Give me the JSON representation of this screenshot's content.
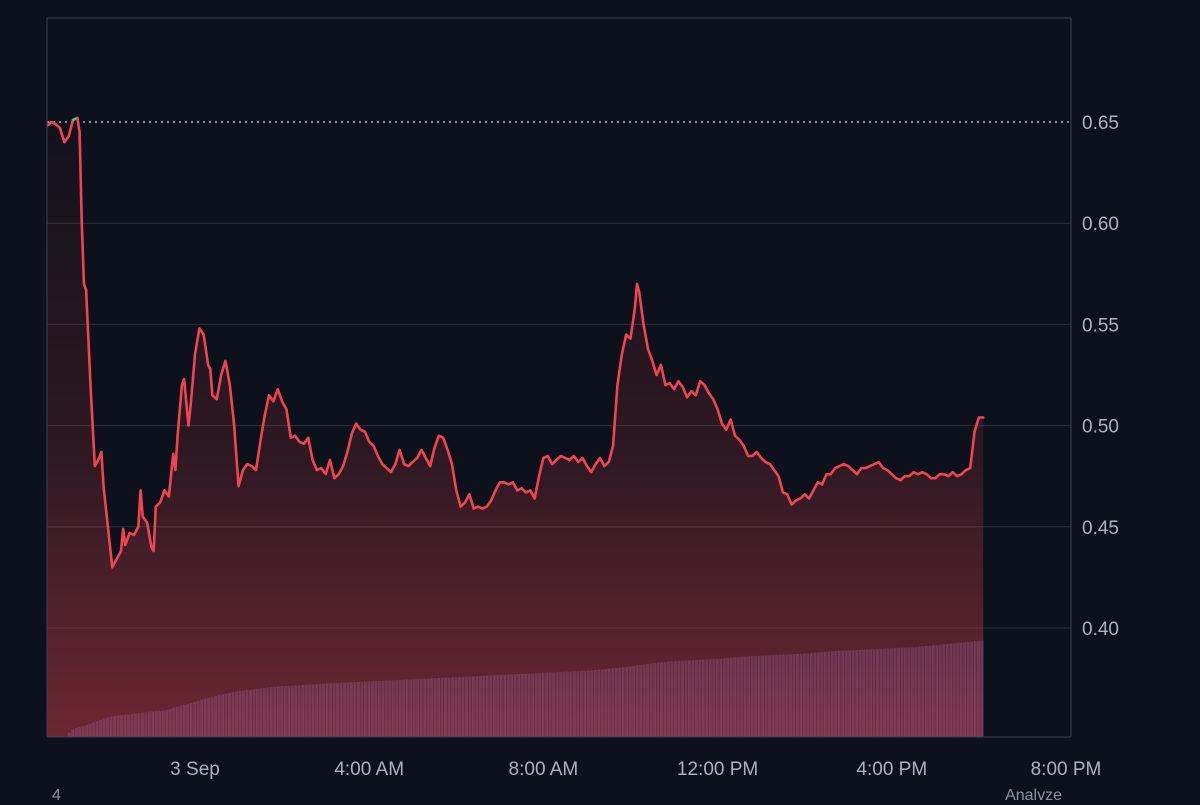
{
  "chart_data": {
    "type": "line",
    "title": "",
    "xlabel": "",
    "ylabel": "",
    "ylim": [
      0.4,
      0.7
    ],
    "y_ticks": [
      0.4,
      0.45,
      0.5,
      0.55,
      0.6,
      0.65
    ],
    "y_tick_labels": [
      "0.40",
      "0.45",
      "0.50",
      "0.55",
      "0.60",
      "0.65"
    ],
    "x_tick_labels": [
      "3 Sep",
      "4:00 AM",
      "8:00 AM",
      "12:00 PM",
      "4:00 PM",
      "8:00 PM"
    ],
    "x_tick_times_hours": [
      0,
      4,
      8,
      12,
      16,
      20
    ],
    "x_range_hours": [
      -3.5,
      20
    ],
    "grid": true,
    "legend": "none",
    "reference_line": {
      "value": 0.65,
      "style": "dotted"
    },
    "colors": {
      "background": "#0d111b",
      "plot_border": "#3a4152",
      "grid": "#2b3140",
      "line_down": "#ef4550",
      "line_up": "#4cc46a",
      "fill_top": "#ef4550",
      "volume": "#2f3358",
      "tick_label": "#aab2c3",
      "reference": "#c8ccd6"
    },
    "series": [
      {
        "points": [
          [
            -3.5,
            0.651
          ],
          [
            -3.4,
            0.648
          ],
          [
            -3.3,
            0.65
          ],
          [
            -3.2,
            0.649
          ],
          [
            -3.1,
            0.647
          ],
          [
            -3.0,
            0.64
          ],
          [
            -2.9,
            0.643
          ],
          [
            -2.8,
            0.651
          ],
          [
            -2.7,
            0.652
          ],
          [
            -2.65,
            0.645
          ],
          [
            -2.6,
            0.6
          ],
          [
            -2.55,
            0.57
          ],
          [
            -2.5,
            0.567
          ],
          [
            -2.4,
            0.52
          ],
          [
            -2.3,
            0.48
          ],
          [
            -2.2,
            0.484
          ],
          [
            -2.15,
            0.487
          ],
          [
            -2.1,
            0.47
          ],
          [
            -2.0,
            0.45
          ],
          [
            -1.9,
            0.43
          ],
          [
            -1.8,
            0.434
          ],
          [
            -1.7,
            0.438
          ],
          [
            -1.65,
            0.449
          ],
          [
            -1.6,
            0.441
          ],
          [
            -1.5,
            0.447
          ],
          [
            -1.4,
            0.446
          ],
          [
            -1.3,
            0.45
          ],
          [
            -1.25,
            0.468
          ],
          [
            -1.2,
            0.455
          ],
          [
            -1.1,
            0.452
          ],
          [
            -1.0,
            0.44
          ],
          [
            -0.95,
            0.438
          ],
          [
            -0.9,
            0.46
          ],
          [
            -0.8,
            0.462
          ],
          [
            -0.7,
            0.468
          ],
          [
            -0.6,
            0.465
          ],
          [
            -0.5,
            0.486
          ],
          [
            -0.45,
            0.478
          ],
          [
            -0.4,
            0.495
          ],
          [
            -0.3,
            0.52
          ],
          [
            -0.25,
            0.523
          ],
          [
            -0.15,
            0.5
          ],
          [
            -0.1,
            0.51
          ],
          [
            0.0,
            0.535
          ],
          [
            0.1,
            0.548
          ],
          [
            0.2,
            0.545
          ],
          [
            0.3,
            0.53
          ],
          [
            0.35,
            0.528
          ],
          [
            0.4,
            0.515
          ],
          [
            0.5,
            0.513
          ],
          [
            0.6,
            0.525
          ],
          [
            0.7,
            0.532
          ],
          [
            0.8,
            0.52
          ],
          [
            0.9,
            0.5
          ],
          [
            1.0,
            0.47
          ],
          [
            1.1,
            0.478
          ],
          [
            1.2,
            0.481
          ],
          [
            1.3,
            0.48
          ],
          [
            1.4,
            0.478
          ],
          [
            1.5,
            0.492
          ],
          [
            1.6,
            0.505
          ],
          [
            1.7,
            0.515
          ],
          [
            1.8,
            0.512
          ],
          [
            1.9,
            0.518
          ],
          [
            2.0,
            0.512
          ],
          [
            2.1,
            0.508
          ],
          [
            2.2,
            0.494
          ],
          [
            2.3,
            0.495
          ],
          [
            2.4,
            0.492
          ],
          [
            2.5,
            0.491
          ],
          [
            2.6,
            0.494
          ],
          [
            2.7,
            0.483
          ],
          [
            2.8,
            0.478
          ],
          [
            2.9,
            0.479
          ],
          [
            3.0,
            0.476
          ],
          [
            3.1,
            0.483
          ],
          [
            3.2,
            0.474
          ],
          [
            3.3,
            0.476
          ],
          [
            3.4,
            0.48
          ],
          [
            3.5,
            0.487
          ],
          [
            3.6,
            0.496
          ],
          [
            3.7,
            0.501
          ],
          [
            3.8,
            0.498
          ],
          [
            3.9,
            0.497
          ],
          [
            4.0,
            0.492
          ],
          [
            4.1,
            0.49
          ],
          [
            4.2,
            0.485
          ],
          [
            4.3,
            0.481
          ],
          [
            4.4,
            0.479
          ],
          [
            4.5,
            0.477
          ],
          [
            4.6,
            0.481
          ],
          [
            4.7,
            0.488
          ],
          [
            4.8,
            0.481
          ],
          [
            4.9,
            0.48
          ],
          [
            5.0,
            0.482
          ],
          [
            5.1,
            0.484
          ],
          [
            5.2,
            0.488
          ],
          [
            5.3,
            0.484
          ],
          [
            5.4,
            0.48
          ],
          [
            5.5,
            0.489
          ],
          [
            5.6,
            0.495
          ],
          [
            5.7,
            0.494
          ],
          [
            5.8,
            0.488
          ],
          [
            5.9,
            0.481
          ],
          [
            6.0,
            0.468
          ],
          [
            6.1,
            0.46
          ],
          [
            6.2,
            0.462
          ],
          [
            6.3,
            0.466
          ],
          [
            6.4,
            0.459
          ],
          [
            6.5,
            0.46
          ],
          [
            6.6,
            0.459
          ],
          [
            6.7,
            0.46
          ],
          [
            6.8,
            0.463
          ],
          [
            6.9,
            0.468
          ],
          [
            7.0,
            0.472
          ],
          [
            7.1,
            0.472
          ],
          [
            7.2,
            0.471
          ],
          [
            7.3,
            0.472
          ],
          [
            7.4,
            0.468
          ],
          [
            7.5,
            0.469
          ],
          [
            7.6,
            0.467
          ],
          [
            7.7,
            0.468
          ],
          [
            7.8,
            0.464
          ],
          [
            7.9,
            0.475
          ],
          [
            8.0,
            0.484
          ],
          [
            8.1,
            0.485
          ],
          [
            8.2,
            0.481
          ],
          [
            8.3,
            0.483
          ],
          [
            8.4,
            0.485
          ],
          [
            8.5,
            0.484
          ],
          [
            8.6,
            0.483
          ],
          [
            8.7,
            0.485
          ],
          [
            8.8,
            0.482
          ],
          [
            8.9,
            0.484
          ],
          [
            9.0,
            0.48
          ],
          [
            9.1,
            0.477
          ],
          [
            9.2,
            0.481
          ],
          [
            9.3,
            0.484
          ],
          [
            9.4,
            0.48
          ],
          [
            9.5,
            0.482
          ],
          [
            9.6,
            0.49
          ],
          [
            9.7,
            0.52
          ],
          [
            9.8,
            0.535
          ],
          [
            9.9,
            0.545
          ],
          [
            10.0,
            0.543
          ],
          [
            10.1,
            0.558
          ],
          [
            10.15,
            0.57
          ],
          [
            10.2,
            0.566
          ],
          [
            10.3,
            0.55
          ],
          [
            10.4,
            0.538
          ],
          [
            10.5,
            0.532
          ],
          [
            10.6,
            0.525
          ],
          [
            10.7,
            0.53
          ],
          [
            10.8,
            0.52
          ],
          [
            10.9,
            0.521
          ],
          [
            11.0,
            0.518
          ],
          [
            11.1,
            0.522
          ],
          [
            11.2,
            0.519
          ],
          [
            11.3,
            0.514
          ],
          [
            11.4,
            0.517
          ],
          [
            11.5,
            0.515
          ],
          [
            11.6,
            0.522
          ],
          [
            11.7,
            0.52
          ],
          [
            11.8,
            0.516
          ],
          [
            11.9,
            0.513
          ],
          [
            12.0,
            0.508
          ],
          [
            12.1,
            0.501
          ],
          [
            12.2,
            0.498
          ],
          [
            12.3,
            0.503
          ],
          [
            12.4,
            0.495
          ],
          [
            12.5,
            0.493
          ],
          [
            12.6,
            0.49
          ],
          [
            12.7,
            0.485
          ],
          [
            12.8,
            0.485
          ],
          [
            12.9,
            0.487
          ],
          [
            13.0,
            0.484
          ],
          [
            13.1,
            0.482
          ],
          [
            13.2,
            0.481
          ],
          [
            13.3,
            0.478
          ],
          [
            13.4,
            0.475
          ],
          [
            13.5,
            0.467
          ],
          [
            13.6,
            0.466
          ],
          [
            13.7,
            0.461
          ],
          [
            13.8,
            0.463
          ],
          [
            13.9,
            0.464
          ],
          [
            14.0,
            0.466
          ],
          [
            14.1,
            0.464
          ],
          [
            14.2,
            0.468
          ],
          [
            14.3,
            0.472
          ],
          [
            14.4,
            0.471
          ],
          [
            14.5,
            0.476
          ],
          [
            14.6,
            0.476
          ],
          [
            14.7,
            0.479
          ],
          [
            14.8,
            0.48
          ],
          [
            14.9,
            0.481
          ],
          [
            15.0,
            0.48
          ],
          [
            15.1,
            0.478
          ],
          [
            15.2,
            0.476
          ],
          [
            15.3,
            0.479
          ],
          [
            15.4,
            0.479
          ],
          [
            15.5,
            0.48
          ],
          [
            15.6,
            0.481
          ],
          [
            15.7,
            0.482
          ],
          [
            15.8,
            0.479
          ],
          [
            15.9,
            0.478
          ],
          [
            16.0,
            0.476
          ],
          [
            16.1,
            0.474
          ],
          [
            16.2,
            0.473
          ],
          [
            16.3,
            0.475
          ],
          [
            16.4,
            0.475
          ],
          [
            16.5,
            0.477
          ],
          [
            16.6,
            0.476
          ],
          [
            16.7,
            0.477
          ],
          [
            16.8,
            0.476
          ],
          [
            16.9,
            0.474
          ],
          [
            17.0,
            0.474
          ],
          [
            17.1,
            0.476
          ],
          [
            17.2,
            0.476
          ],
          [
            17.3,
            0.475
          ],
          [
            17.4,
            0.477
          ],
          [
            17.5,
            0.475
          ],
          [
            17.6,
            0.476
          ],
          [
            17.7,
            0.478
          ],
          [
            17.8,
            0.479
          ],
          [
            17.9,
            0.497
          ],
          [
            18.0,
            0.504
          ],
          [
            18.1,
            0.504
          ]
        ]
      }
    ],
    "volume_profile": [
      [
        -3.0,
        0.0
      ],
      [
        -2.9,
        0.05
      ],
      [
        -2.8,
        0.08
      ],
      [
        -2.6,
        0.1
      ],
      [
        -2.4,
        0.13
      ],
      [
        -2.2,
        0.16
      ],
      [
        -2.0,
        0.19
      ],
      [
        -1.8,
        0.2
      ],
      [
        -1.6,
        0.21
      ],
      [
        -1.4,
        0.22
      ],
      [
        -1.2,
        0.23
      ],
      [
        -1.0,
        0.24
      ],
      [
        -0.7,
        0.25
      ],
      [
        -0.4,
        0.29
      ],
      [
        -0.1,
        0.32
      ],
      [
        0.2,
        0.36
      ],
      [
        0.6,
        0.4
      ],
      [
        1.0,
        0.43
      ],
      [
        1.4,
        0.45
      ],
      [
        1.8,
        0.47
      ],
      [
        2.2,
        0.48
      ],
      [
        2.6,
        0.49
      ],
      [
        3.0,
        0.5
      ],
      [
        3.5,
        0.51
      ],
      [
        4.0,
        0.52
      ],
      [
        4.5,
        0.53
      ],
      [
        5.0,
        0.54
      ],
      [
        5.5,
        0.55
      ],
      [
        6.0,
        0.56
      ],
      [
        6.5,
        0.57
      ],
      [
        7.0,
        0.58
      ],
      [
        7.5,
        0.59
      ],
      [
        8.0,
        0.6
      ],
      [
        8.5,
        0.61
      ],
      [
        9.0,
        0.62
      ],
      [
        9.5,
        0.64
      ],
      [
        10.0,
        0.66
      ],
      [
        10.5,
        0.69
      ],
      [
        11.0,
        0.71
      ],
      [
        11.5,
        0.72
      ],
      [
        12.0,
        0.73
      ],
      [
        12.5,
        0.75
      ],
      [
        13.0,
        0.76
      ],
      [
        13.5,
        0.77
      ],
      [
        14.0,
        0.78
      ],
      [
        14.5,
        0.8
      ],
      [
        15.0,
        0.81
      ],
      [
        15.5,
        0.82
      ],
      [
        16.0,
        0.83
      ],
      [
        16.5,
        0.84
      ],
      [
        17.0,
        0.86
      ],
      [
        17.5,
        0.88
      ],
      [
        18.0,
        0.9
      ],
      [
        18.1,
        0.9
      ]
    ]
  },
  "corner_text": {
    "bottom_left": "4",
    "bottom_right": "Analyze"
  }
}
